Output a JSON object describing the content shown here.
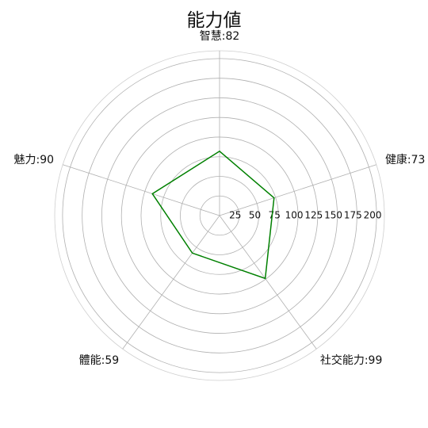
{
  "chart_data": {
    "type": "radar",
    "title": "能力値",
    "categories": [
      "智慧",
      "健康",
      "社交能力",
      "體能",
      "魅力"
    ],
    "category_labels": [
      "智慧:82",
      "健康:73",
      "社交能力:99",
      "體能:59",
      "魅力:90"
    ],
    "values": [
      82,
      73,
      99,
      59,
      90
    ],
    "r_ticks": [
      25,
      50,
      75,
      100,
      125,
      150,
      175,
      200
    ],
    "r_tick_labels": [
      "25",
      "50",
      "75",
      "100",
      "125",
      "150",
      "175",
      "200"
    ],
    "rlim": [
      0,
      210
    ],
    "grid": true,
    "colors": {
      "series": "#008000",
      "grid": "#b0b0b0"
    }
  }
}
